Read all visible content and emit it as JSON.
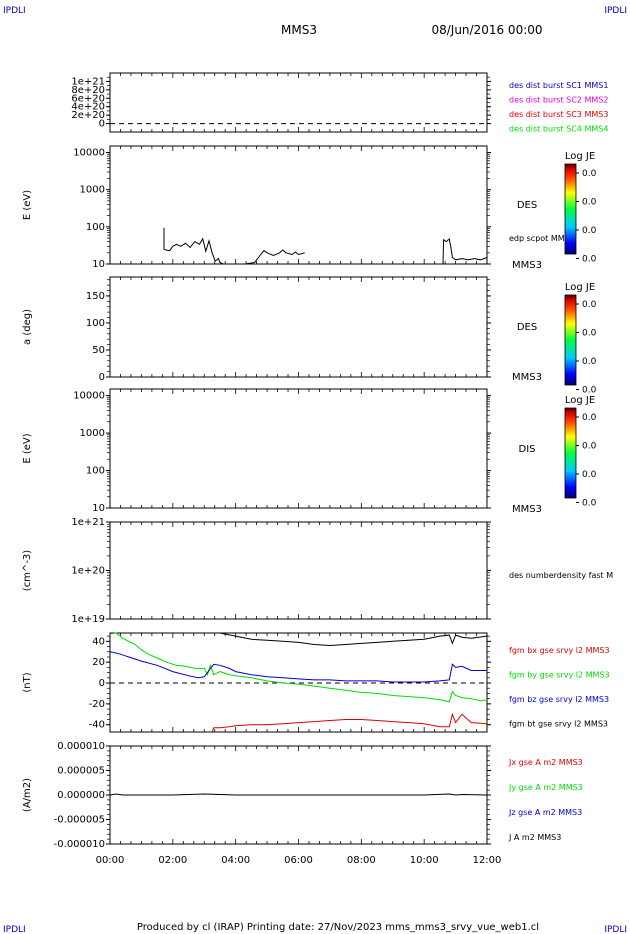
{
  "corner_label": "IPDLI",
  "spacecraft": "MMS3",
  "date": "08/Jun/2016 00:00",
  "footer": "Produced by cl (IRAP)   Printing date: 27/Nov/2023   mms_mms3_srvy_vue_web1.cl",
  "colorbar_title": "Log JE",
  "colorbar_ticks": [
    "0.0",
    "0.0",
    "0.0",
    "0.0"
  ],
  "colors": {
    "black": "#000000",
    "red": "#e00000",
    "green": "#00dd00",
    "blue": "#0000cc",
    "magenta": "#dd00dd"
  },
  "x_axis": {
    "ticks": [
      "00:00",
      "02:00",
      "04:00",
      "06:00",
      "08:00",
      "10:00",
      "12:00"
    ]
  },
  "chart_data": [
    {
      "type": "line",
      "ylim": [
        -2e+20,
        1.2e+21
      ],
      "y_tick_labels": [
        "1e+21",
        "8e+20",
        "6e+20",
        "4e+20",
        "2e+20",
        "0"
      ],
      "legend": [
        {
          "text": "des dist burst SC1 MMS1",
          "color": "blue"
        },
        {
          "text": "des dist burst SC2 MMS2",
          "color": "magenta"
        },
        {
          "text": "des dist burst SC3 MMS3",
          "color": "red"
        },
        {
          "text": "des dist burst SC4 MMS4",
          "color": "green"
        }
      ]
    },
    {
      "type": "line",
      "ylabel": "E (eV)",
      "scale": "log",
      "y_tick_labels": [
        "10000",
        "1000",
        "100",
        "10"
      ],
      "species": "DES",
      "side_label": "edp scpot MMS3",
      "sc_label": "MMS3",
      "series": [
        {
          "name": "edp scpot MMS3",
          "color": "black",
          "segments": [
            {
              "x": [
                1.72,
                1.72,
                1.76,
                1.9,
                2.0,
                2.12,
                2.25,
                2.4,
                2.55,
                2.7,
                2.85,
                2.95,
                3.05,
                3.15,
                3.25,
                3.35,
                3.45,
                3.5,
                3.6,
                3.7,
                3.8,
                3.9,
                4.0
              ],
              "y": [
                95,
                25,
                24,
                23,
                30,
                34,
                30,
                36,
                28,
                40,
                34,
                48,
                22,
                42,
                20,
                12,
                14,
                11,
                10,
                10,
                10,
                10,
                10
              ]
            },
            {
              "x": [
                4.0,
                4.3,
                4.6,
                4.8,
                4.9,
                5.0,
                5.2,
                5.4,
                5.5,
                5.6,
                5.8,
                5.9,
                6.0,
                6.2
              ],
              "y": [
                10,
                10,
                11,
                18,
                23,
                20,
                17,
                20,
                24,
                20,
                18,
                21,
                18,
                20
              ]
            },
            {
              "x": [
                10.6,
                10.62,
                10.7,
                10.8,
                10.85,
                10.9,
                11.0,
                11.2,
                11.4,
                11.6,
                11.8,
                12.0
              ],
              "y": [
                10,
                45,
                40,
                47,
                28,
                15,
                13,
                14,
                13,
                14,
                13,
                15
              ]
            }
          ]
        }
      ]
    },
    {
      "type": "heatmap",
      "ylabel": "a (deg)",
      "y_tick_labels": [
        "150",
        "100",
        "50",
        "0"
      ],
      "species": "DES",
      "sc_label": "MMS3"
    },
    {
      "type": "heatmap",
      "ylabel": "E (eV)",
      "scale": "log",
      "y_tick_labels": [
        "10000",
        "1000",
        "100",
        "10"
      ],
      "species": "DIS",
      "sc_label": "MMS3"
    },
    {
      "type": "line",
      "ylabel": "(cm^-3)",
      "scale": "log",
      "y_tick_labels": [
        "1e+21",
        "1e+20",
        "1e+19"
      ],
      "side_label": "des numberdensity fast M"
    },
    {
      "type": "line",
      "ylabel": "(nT)",
      "ylim": [
        -47,
        48
      ],
      "y_tick_labels": [
        "40",
        "20",
        "0",
        "-20",
        "-40"
      ],
      "legend": [
        {
          "text": "fgm bx gse srvy l2 MMS3",
          "color": "red"
        },
        {
          "text": "fgm by gse srvy l2 MMS3",
          "color": "green"
        },
        {
          "text": "fgm bz gse srvy l2 MMS3",
          "color": "blue"
        },
        {
          "text": "fgm bt gse srvy l2 MMS3",
          "color": "black"
        }
      ],
      "series": [
        {
          "name": "fgm by gse srvy l2 MMS3",
          "color": "green",
          "x": [
            0,
            0.2,
            0.4,
            0.6,
            0.8,
            1.0,
            1.2,
            1.5,
            1.8,
            2.1,
            2.4,
            2.7,
            3.0,
            3.1,
            3.2,
            3.3,
            3.5,
            3.8,
            4.0,
            4.5,
            5.0,
            5.5,
            6.0,
            6.5,
            7.0,
            7.5,
            8.0,
            8.5,
            9.0,
            9.5,
            10.0,
            10.5,
            10.8,
            10.9,
            11.0,
            11.2,
            11.5,
            11.8,
            12.0
          ],
          "y": [
            47,
            48,
            43,
            40,
            37,
            32,
            28,
            24,
            20,
            17,
            16,
            14,
            14,
            8,
            17,
            8,
            11,
            8,
            7,
            5,
            2,
            0,
            -1,
            -3,
            -5,
            -7,
            -9,
            -10,
            -12,
            -13,
            -14,
            -16,
            -18,
            -8,
            -12,
            -14,
            -15,
            -17,
            -16
          ]
        },
        {
          "name": "fgm bz gse srvy l2 MMS3",
          "color": "blue",
          "x": [
            0,
            0.3,
            0.6,
            1.0,
            1.5,
            2.0,
            2.5,
            2.8,
            3.0,
            3.2,
            3.3,
            3.5,
            3.8,
            4.0,
            4.5,
            5.0,
            5.5,
            6.0,
            6.5,
            7.0,
            7.5,
            8.0,
            8.5,
            9.0,
            9.5,
            10.0,
            10.5,
            10.8,
            10.9,
            11.0,
            11.2,
            11.5,
            12.0
          ],
          "y": [
            30,
            28,
            25,
            21,
            17,
            11,
            7,
            5,
            6,
            14,
            18,
            17,
            14,
            11,
            8,
            6,
            5,
            4,
            3,
            3,
            2,
            2,
            2,
            1,
            1,
            1,
            2,
            3,
            18,
            15,
            16,
            12,
            12
          ]
        },
        {
          "name": "fgm bt gse srvy l2 MMS3",
          "color": "black",
          "x": [
            3.25,
            3.5,
            4.0,
            4.5,
            5.0,
            5.5,
            6.0,
            6.5,
            7.0,
            7.5,
            8.0,
            8.5,
            9.0,
            9.5,
            10.0,
            10.5,
            10.8,
            10.9,
            11.0,
            11.2,
            11.5,
            12.0
          ],
          "y": [
            48,
            48,
            45,
            42,
            41,
            40,
            39,
            37,
            36,
            37,
            38,
            39,
            40,
            41,
            42,
            45,
            46,
            38,
            46,
            44,
            43,
            45
          ]
        },
        {
          "name": "fgm bx gse srvy l2 MMS3",
          "color": "red",
          "x": [
            3.25,
            3.3,
            3.5,
            3.8,
            4.0,
            4.5,
            5.0,
            5.5,
            6.0,
            6.5,
            7.0,
            7.5,
            8.0,
            8.5,
            9.0,
            9.5,
            10.0,
            10.5,
            10.8,
            10.9,
            11.0,
            11.2,
            11.5,
            12.0
          ],
          "y": [
            -47,
            -43,
            -43,
            -42,
            -41,
            -40,
            -40,
            -39,
            -38,
            -37,
            -36,
            -35,
            -35,
            -36,
            -37,
            -38,
            -39,
            -42,
            -42,
            -30,
            -38,
            -30,
            -38,
            -39
          ]
        }
      ]
    },
    {
      "type": "line",
      "ylabel": "(A/m2)",
      "ylim": [
        -1e-05,
        1e-05
      ],
      "y_tick_labels": [
        "0.000010",
        "0.000005",
        "0.000000",
        "-0.000005",
        "-0.000010"
      ],
      "legend": [
        {
          "text": "Jx gse A m2 MMS3",
          "color": "red"
        },
        {
          "text": "Jy gse A m2 MMS3",
          "color": "green"
        },
        {
          "text": "Jz gse A m2 MMS3",
          "color": "blue"
        },
        {
          "text": "J A m2 MMS3",
          "color": "black"
        }
      ],
      "series": [
        {
          "name": "J A m2 MMS3",
          "color": "black",
          "x": [
            0,
            0.2,
            0.4,
            1.0,
            2.0,
            2.5,
            3.0,
            3.5,
            4.0,
            6.0,
            8.0,
            10.0,
            10.8,
            11.0,
            11.2,
            12.0
          ],
          "y": [
            0,
            2e-07,
            0,
            0,
            0,
            1e-07,
            2e-07,
            1e-07,
            0,
            0,
            0,
            0,
            2e-07,
            0,
            1e-07,
            0
          ]
        }
      ]
    }
  ]
}
